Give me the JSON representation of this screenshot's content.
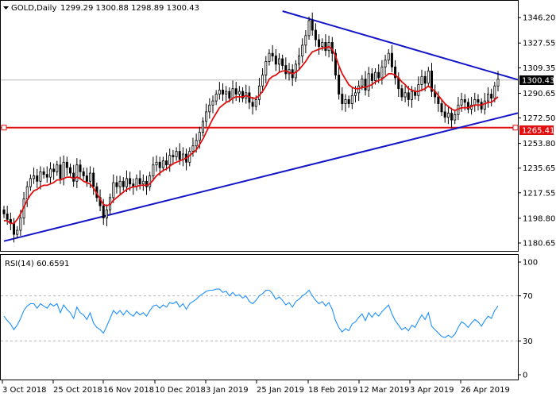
{
  "chart_data": [
    {
      "type": "candlestick",
      "symbol": "GOLD,Daily",
      "ohlc_header": "1299.29 1300.88 1298.89 1300.43",
      "ylim": [
        1176,
        1358
      ],
      "y_ticks": [
        "1346.20",
        "1327.55",
        "1309.35",
        "1290.65",
        "1272.50",
        "1253.80",
        "1235.65",
        "1217.55",
        "1198.80",
        "1180.65"
      ],
      "x_ticks": [
        "3 Oct 2018",
        "25 Oct 2018",
        "16 Nov 2018",
        "10 Dec 2018",
        "3 Jan 2019",
        "25 Jan 2019",
        "18 Feb 2019",
        "12 Mar 2019",
        "3 Apr 2019",
        "26 Apr 2019"
      ],
      "current_price": "1300.43",
      "support_level": "1265.41",
      "close_series": [
        1202,
        1198,
        1195,
        1187,
        1190,
        1199,
        1213,
        1222,
        1228,
        1230,
        1226,
        1233,
        1231,
        1229,
        1235,
        1233,
        1238,
        1228,
        1240,
        1236,
        1232,
        1226,
        1238,
        1233,
        1230,
        1226,
        1232,
        1222,
        1214,
        1208,
        1199,
        1205,
        1214,
        1225,
        1222,
        1226,
        1222,
        1228,
        1224,
        1222,
        1228,
        1224,
        1226,
        1222,
        1230,
        1238,
        1240,
        1236,
        1241,
        1238,
        1245,
        1244,
        1248,
        1242,
        1246,
        1240,
        1248,
        1252,
        1256,
        1262,
        1270,
        1277,
        1282,
        1285,
        1290,
        1293,
        1290,
        1292,
        1287,
        1294,
        1290,
        1292,
        1287,
        1291,
        1284,
        1281,
        1286,
        1296,
        1304,
        1314,
        1320,
        1318,
        1312,
        1316,
        1311,
        1305,
        1308,
        1302,
        1312,
        1318,
        1326,
        1333,
        1344,
        1337,
        1330,
        1325,
        1328,
        1322,
        1328,
        1320,
        1304,
        1290,
        1283,
        1286,
        1283,
        1289,
        1291,
        1296,
        1301,
        1293,
        1305,
        1300,
        1306,
        1302,
        1310,
        1315,
        1320,
        1310,
        1302,
        1294,
        1288,
        1291,
        1286,
        1292,
        1289,
        1297,
        1303,
        1298,
        1307,
        1292,
        1288,
        1283,
        1277,
        1273,
        1276,
        1271,
        1275,
        1282,
        1286,
        1284,
        1279,
        1282,
        1286,
        1284,
        1279,
        1285,
        1290,
        1287,
        1296,
        1301
      ],
      "ma_series": [
        1197,
        1197,
        1195,
        1195,
        1198,
        1202,
        1207,
        1212,
        1216,
        1219,
        1220,
        1222,
        1223,
        1223,
        1224,
        1225,
        1227,
        1227,
        1228,
        1229,
        1229,
        1228,
        1229,
        1228,
        1226,
        1225,
        1224,
        1221,
        1217,
        1213,
        1209,
        1208,
        1209,
        1212,
        1214,
        1216,
        1218,
        1220,
        1221,
        1222,
        1222,
        1223,
        1223,
        1223,
        1224,
        1227,
        1230,
        1232,
        1234,
        1235,
        1237,
        1239,
        1240,
        1241,
        1242,
        1243,
        1245,
        1247,
        1249,
        1253,
        1257,
        1262,
        1267,
        1272,
        1276,
        1280,
        1282,
        1284,
        1285,
        1287,
        1288,
        1288,
        1288,
        1289,
        1288,
        1287,
        1287,
        1289,
        1292,
        1296,
        1301,
        1303,
        1304,
        1306,
        1307,
        1307,
        1306,
        1305,
        1306,
        1308,
        1311,
        1314,
        1318,
        1321,
        1322,
        1323,
        1324,
        1324,
        1325,
        1323,
        1318,
        1311,
        1305,
        1301,
        1297,
        1295,
        1294,
        1294,
        1295,
        1295,
        1296,
        1297,
        1299,
        1300,
        1301,
        1303,
        1305,
        1305,
        1304,
        1302,
        1299,
        1297,
        1294,
        1293,
        1292,
        1292,
        1293,
        1294,
        1296,
        1294,
        1292,
        1289,
        1286,
        1283,
        1281,
        1279,
        1278,
        1279,
        1280,
        1280,
        1280,
        1281,
        1282,
        1282,
        1282,
        1283,
        1284,
        1284,
        1286,
        1288
      ]
    },
    {
      "type": "line",
      "title": "RSI(14) 60.6591",
      "ylim": [
        0,
        100
      ],
      "y_ticks": [
        "100",
        "70",
        "30",
        "0"
      ],
      "levels": [
        70,
        30
      ],
      "values": [
        52,
        48,
        45,
        40,
        44,
        50,
        57,
        61,
        63,
        63,
        59,
        63,
        61,
        59,
        63,
        61,
        63,
        55,
        62,
        58,
        55,
        50,
        60,
        55,
        53,
        49,
        55,
        46,
        42,
        40,
        37,
        43,
        50,
        57,
        54,
        57,
        53,
        57,
        54,
        52,
        56,
        53,
        55,
        52,
        57,
        61,
        62,
        59,
        62,
        60,
        64,
        63,
        65,
        60,
        63,
        58,
        63,
        65,
        67,
        70,
        72,
        74,
        75,
        75,
        76,
        76,
        73,
        74,
        70,
        73,
        70,
        71,
        68,
        70,
        65,
        63,
        66,
        70,
        72,
        75,
        75,
        72,
        67,
        69,
        66,
        62,
        64,
        60,
        65,
        67,
        70,
        72,
        75,
        70,
        66,
        63,
        65,
        61,
        64,
        58,
        48,
        42,
        38,
        41,
        39,
        45,
        47,
        51,
        54,
        48,
        55,
        51,
        55,
        52,
        56,
        59,
        62,
        54,
        48,
        44,
        40,
        42,
        39,
        44,
        42,
        48,
        53,
        49,
        55,
        43,
        40,
        37,
        34,
        33,
        35,
        33,
        36,
        42,
        47,
        45,
        42,
        46,
        49,
        47,
        43,
        48,
        52,
        50,
        57,
        61
      ]
    }
  ]
}
